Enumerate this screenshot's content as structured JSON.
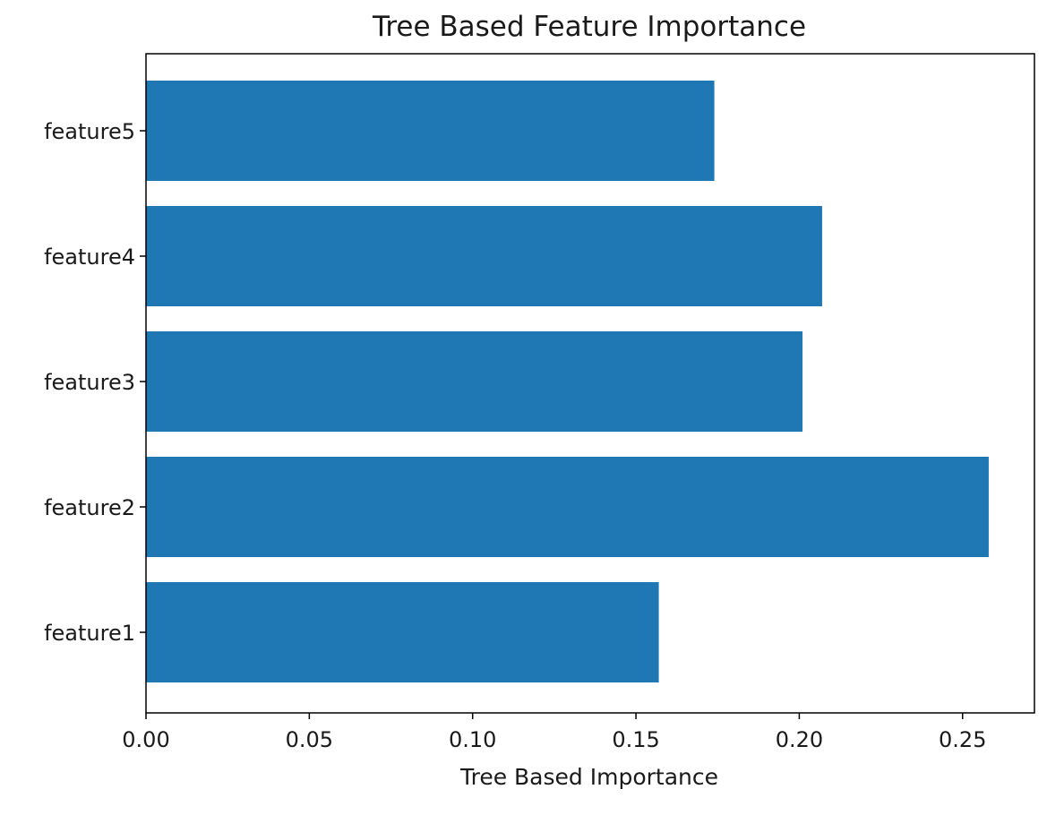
{
  "chart_data": {
    "type": "bar",
    "orientation": "horizontal",
    "title": "Tree Based Feature Importance",
    "xlabel": "Tree Based Importance",
    "ylabel": "",
    "categories": [
      "feature1",
      "feature2",
      "feature3",
      "feature4",
      "feature5"
    ],
    "values": [
      0.157,
      0.258,
      0.201,
      0.207,
      0.174
    ],
    "xlim": [
      0,
      0.272
    ],
    "xticks": [
      0.0,
      0.05,
      0.1,
      0.15,
      0.2,
      0.25
    ],
    "xtick_labels": [
      "0.00",
      "0.05",
      "0.10",
      "0.15",
      "0.20",
      "0.25"
    ],
    "bar_color": "#1f77b4",
    "grid": false,
    "legend": "none"
  }
}
